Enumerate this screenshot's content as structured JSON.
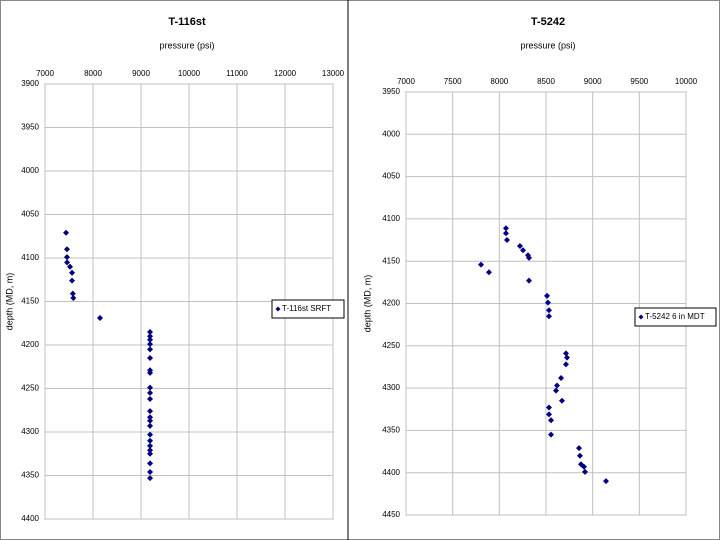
{
  "chart_data": [
    {
      "type": "scatter",
      "title": "T-116st",
      "x_label": "pressure (psi)",
      "y_label": "depth (MD, m)",
      "xlim": [
        7000,
        13000
      ],
      "xticks": [
        7000,
        8000,
        9000,
        10000,
        11000,
        12000,
        13000
      ],
      "ylim": [
        3900,
        4400
      ],
      "yticks": [
        3900,
        3950,
        4000,
        4050,
        4100,
        4150,
        4200,
        4250,
        4300,
        4350,
        4400
      ],
      "y_inverted": true,
      "x_axis_top": true,
      "grid": true,
      "legend": "right",
      "series": [
        {
          "name": "T-116st SRFT",
          "color": "#000080",
          "x": [
            7438,
            7458,
            7458,
            7460,
            7521,
            7563,
            7563,
            7580,
            7590,
            8146,
            9188,
            9188,
            9188,
            9188,
            9188,
            9188,
            9188,
            9188,
            9188,
            9188,
            9188,
            9188,
            9188,
            9188,
            9188,
            9188,
            9188,
            9188,
            9188,
            9188,
            9188,
            9188,
            9188
          ],
          "values": [
            4071,
            4090,
            4099,
            4105,
            4110,
            4117,
            4126,
            4141,
            4146,
            4169,
            4185,
            4190,
            4194,
            4199,
            4205,
            4215,
            4229,
            4232,
            4249,
            4255,
            4262,
            4276,
            4283,
            4287,
            4293,
            4303,
            4310,
            4316,
            4321,
            4325,
            4336,
            4346,
            4353
          ]
        }
      ]
    },
    {
      "type": "scatter",
      "title": "T-5242",
      "x_label": "pressure (psi)",
      "y_label": "depth (MD, m)",
      "xlim": [
        7000,
        10000
      ],
      "xticks": [
        7000,
        7500,
        8000,
        8500,
        9000,
        9500,
        10000
      ],
      "ylim": [
        3950,
        4450
      ],
      "yticks": [
        3950,
        4000,
        4050,
        4100,
        4150,
        4200,
        4250,
        4300,
        4350,
        4400,
        4450
      ],
      "y_inverted": true,
      "x_axis_top": true,
      "grid": true,
      "legend": "right",
      "series": [
        {
          "name": "T-5242 6 in MDT",
          "color": "#000080",
          "x": [
            8071,
            8071,
            8082,
            8221,
            8254,
            8307,
            8318,
            7804,
            7889,
            8318,
            8511,
            8521,
            8532,
            8532,
            8714,
            8725,
            8714,
            8661,
            8618,
            8607,
            8671,
            8532,
            8532,
            8554,
            8554,
            8854,
            8864,
            8875,
            8907,
            8918,
            9143
          ],
          "values": [
            4111,
            4117,
            4125,
            4132,
            4137,
            4143,
            4146,
            4154,
            4163,
            4173,
            4191,
            4199,
            4208,
            4215,
            4259,
            4264,
            4272,
            4288,
            4297,
            4303,
            4315,
            4323,
            4331,
            4338,
            4355,
            4371,
            4380,
            4390,
            4393,
            4399,
            4410
          ]
        }
      ]
    }
  ]
}
